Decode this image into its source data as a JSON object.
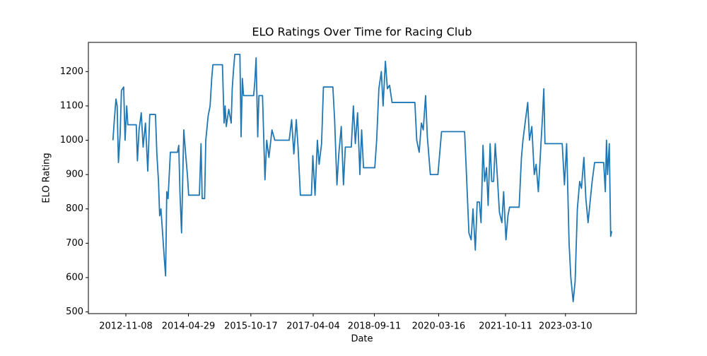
{
  "chart_data": {
    "type": "line",
    "title": "ELO Ratings Over Time for Racing Club",
    "xlabel": "Date",
    "ylabel": "ELO Rating",
    "x": [
      "2012-07-20",
      "2012-08-01",
      "2012-08-15",
      "2012-08-25",
      "2012-09-05",
      "2012-09-20",
      "2012-10-01",
      "2012-10-20",
      "2012-11-01",
      "2012-11-15",
      "2012-11-25",
      "2013-02-05",
      "2013-02-15",
      "2013-03-01",
      "2013-03-20",
      "2013-04-05",
      "2013-04-25",
      "2013-05-15",
      "2013-06-01",
      "2013-07-20",
      "2013-08-01",
      "2013-08-15",
      "2013-08-25",
      "2013-09-05",
      "2013-09-25",
      "2013-10-05",
      "2013-10-15",
      "2013-10-25",
      "2013-11-05",
      "2013-11-25",
      "2014-01-25",
      "2014-02-05",
      "2014-02-15",
      "2014-03-01",
      "2014-03-20",
      "2014-04-05",
      "2014-04-20",
      "2014-05-01",
      "2014-08-01",
      "2014-08-15",
      "2014-08-25",
      "2014-09-15",
      "2014-09-25",
      "2014-10-15",
      "2014-11-01",
      "2014-11-15",
      "2014-11-25",
      "2015-02-15",
      "2015-03-01",
      "2015-03-10",
      "2015-03-20",
      "2015-04-10",
      "2015-05-01",
      "2015-05-10",
      "2015-05-20",
      "2015-06-01",
      "2015-07-15",
      "2015-07-25",
      "2015-08-05",
      "2015-08-15",
      "2015-11-10",
      "2015-11-20",
      "2015-12-01",
      "2015-12-15",
      "2015-12-25",
      "2016-01-25",
      "2016-02-15",
      "2016-03-01",
      "2016-03-20",
      "2016-04-15",
      "2016-05-10",
      "2016-09-10",
      "2016-10-01",
      "2016-10-20",
      "2016-11-10",
      "2016-11-25",
      "2016-12-15",
      "2017-03-20",
      "2017-04-01",
      "2017-04-20",
      "2017-05-10",
      "2017-05-25",
      "2017-06-15",
      "2017-07-01",
      "2017-09-20",
      "2017-10-05",
      "2017-10-25",
      "2017-11-10",
      "2017-12-01",
      "2017-12-20",
      "2018-01-05",
      "2018-02-25",
      "2018-03-15",
      "2018-04-01",
      "2018-04-20",
      "2018-05-10",
      "2018-05-25",
      "2018-06-10",
      "2018-09-15",
      "2018-10-01",
      "2018-10-20",
      "2018-11-10",
      "2018-11-25",
      "2018-12-15",
      "2019-01-01",
      "2019-01-20",
      "2019-02-10",
      "2019-08-25",
      "2019-09-10",
      "2019-10-01",
      "2019-10-20",
      "2019-11-05",
      "2019-11-25",
      "2019-12-10",
      "2020-01-05",
      "2020-03-10",
      "2020-04-10",
      "2020-10-25",
      "2020-11-10",
      "2020-12-01",
      "2020-12-20",
      "2021-01-05",
      "2021-01-25",
      "2021-02-10",
      "2021-03-01",
      "2021-03-15",
      "2021-04-01",
      "2021-04-15",
      "2021-05-01",
      "2021-05-15",
      "2021-06-01",
      "2021-06-15",
      "2021-07-01",
      "2021-07-15",
      "2021-08-01",
      "2021-08-20",
      "2021-09-10",
      "2021-09-25",
      "2021-10-15",
      "2021-11-01",
      "2021-11-15",
      "2022-02-05",
      "2022-02-25",
      "2022-03-10",
      "2022-04-01",
      "2022-04-20",
      "2022-05-05",
      "2022-05-25",
      "2022-06-15",
      "2022-07-01",
      "2022-07-20",
      "2022-08-10",
      "2022-08-25",
      "2022-09-05",
      "2022-09-15",
      "2023-02-10",
      "2023-03-01",
      "2023-03-20",
      "2023-04-10",
      "2023-04-25",
      "2023-05-15",
      "2023-06-01",
      "2023-06-20",
      "2023-07-10",
      "2023-07-25",
      "2023-08-15",
      "2023-09-01",
      "2023-09-20",
      "2023-10-10",
      "2023-10-25",
      "2023-11-15",
      "2024-02-01",
      "2024-02-15",
      "2024-02-25",
      "2024-03-05",
      "2024-03-20",
      "2024-04-01",
      "2024-04-10"
    ],
    "series": [
      {
        "name": "ELO Rating",
        "color": "#1f77b4",
        "values": [
          1000,
          1060,
          1120,
          1100,
          935,
          1020,
          1145,
          1155,
          1000,
          1100,
          1045,
          1045,
          940,
          1030,
          1080,
          980,
          1050,
          910,
          1075,
          1075,
          960,
          880,
          780,
          800,
          700,
          650,
          605,
          850,
          830,
          965,
          965,
          985,
          850,
          730,
          1030,
          960,
          900,
          840,
          840,
          990,
          830,
          830,
          1000,
          1070,
          1100,
          1180,
          1220,
          1220,
          1050,
          1100,
          1040,
          1090,
          1050,
          1150,
          1200,
          1250,
          1250,
          1010,
          1180,
          1130,
          1130,
          1170,
          1240,
          1010,
          1130,
          1130,
          885,
          1000,
          950,
          1030,
          1000,
          1000,
          1060,
          960,
          1060,
          980,
          840,
          840,
          955,
          840,
          1000,
          930,
          990,
          1155,
          1155,
          1060,
          870,
          960,
          1040,
          870,
          980,
          980,
          1100,
          990,
          1080,
          900,
          1030,
          920,
          920,
          1000,
          1150,
          1200,
          1100,
          1230,
          1150,
          1160,
          1110,
          1110,
          1000,
          965,
          1050,
          1030,
          1130,
          1010,
          900,
          900,
          1025,
          1025,
          900,
          730,
          710,
          800,
          680,
          820,
          820,
          760,
          985,
          880,
          920,
          810,
          990,
          880,
          880,
          990,
          900,
          790,
          760,
          850,
          710,
          780,
          805,
          805,
          950,
          1000,
          1060,
          1110,
          1000,
          1040,
          900,
          930,
          850,
          980,
          1070,
          1150,
          990,
          990,
          870,
          990,
          700,
          600,
          530,
          590,
          800,
          880,
          860,
          950,
          830,
          760,
          830,
          880,
          935,
          935,
          850,
          1000,
          900,
          990,
          720,
          735
        ]
      }
    ],
    "xlim": [
      "2011-12-22",
      "2024-11-07"
    ],
    "xticks": [
      "2012-11-08",
      "2014-04-29",
      "2015-10-17",
      "2017-04-04",
      "2018-09-11",
      "2020-03-16",
      "2021-10-11",
      "2023-03-10"
    ],
    "ylim": [
      495,
      1285
    ],
    "yticks": [
      500,
      600,
      700,
      800,
      900,
      1000,
      1100,
      1200
    ],
    "grid": false
  }
}
